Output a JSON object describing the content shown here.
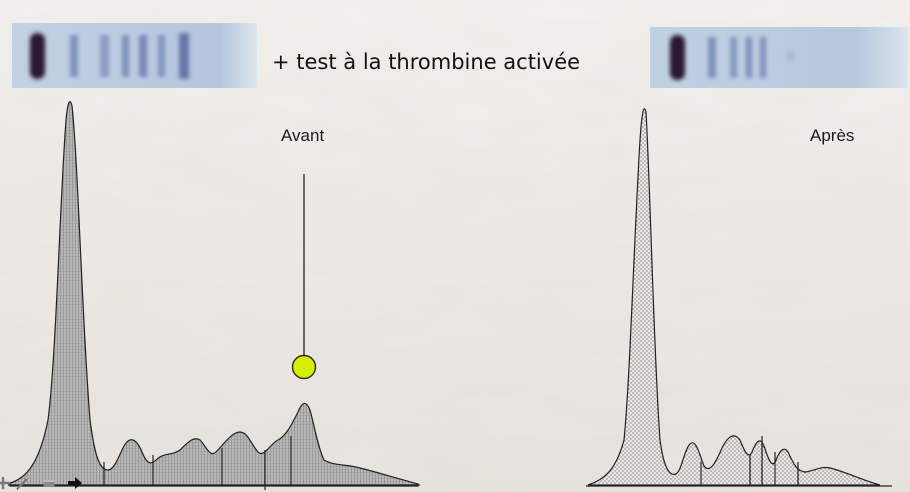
{
  "title": "+ test à la thrombine activée",
  "labels": {
    "before": "Avant",
    "after": "Après"
  },
  "colors": {
    "band": "#2a1436",
    "gel_background": "#b9cbe0",
    "marker": "#d7f000",
    "curve": "#222222"
  },
  "toolbar_icons": [
    "cross-arrow-icon",
    "pen-icon",
    "eraser-icon",
    "arrow-right-icon"
  ]
}
